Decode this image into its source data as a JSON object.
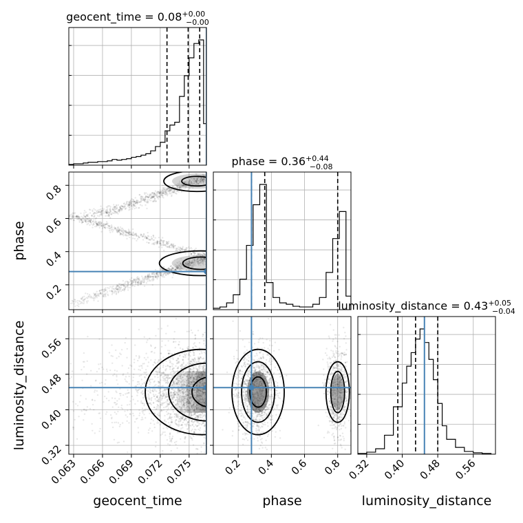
{
  "colors": {
    "truth": "#4682b4",
    "hist": "#000000",
    "grid": "#b0b0b0",
    "points": "#000000"
  },
  "chart_data": {
    "type": "corner",
    "parameters": [
      "geocent_time",
      "phase",
      "luminosity_distance"
    ],
    "truths": {
      "geocent_time": 0.0768,
      "phase": 0.28,
      "luminosity_distance": 0.45
    },
    "ranges": {
      "geocent_time": [
        0.0625,
        0.0768
      ],
      "phase": [
        0.05,
        0.88
      ],
      "luminosity_distance": [
        0.3,
        0.61
      ]
    },
    "ticks": {
      "geocent_time": [
        "0.063",
        "0.066",
        "0.069",
        "0.072",
        "0.075"
      ],
      "phase": [
        "0.2",
        "0.4",
        "0.6",
        "0.8"
      ],
      "luminosity_distance": [
        "0.32",
        "0.40",
        "0.48",
        "0.56"
      ]
    },
    "titles": [
      {
        "param": "geocent_time",
        "label": "geocent_time = 0.08",
        "plus": "+0.00",
        "minus": "−0.00"
      },
      {
        "param": "phase",
        "label": "phase = 0.36",
        "plus": "+0.44",
        "minus": "−0.08"
      },
      {
        "param": "luminosity_distance",
        "label": "luminosity_distance = 0.43",
        "plus": "+0.05",
        "minus": "−0.04"
      }
    ],
    "quantiles": {
      "geocent_time": [
        0.0727,
        0.0749,
        0.0761
      ],
      "phase": [
        0.28,
        0.36,
        0.8
      ],
      "luminosity_distance": [
        0.39,
        0.43,
        0.48
      ]
    },
    "histograms": {
      "geocent_time": {
        "edges": [
          0.0625,
          0.063,
          0.0635,
          0.064,
          0.0645,
          0.065,
          0.0655,
          0.066,
          0.0665,
          0.067,
          0.0675,
          0.068,
          0.0685,
          0.069,
          0.0695,
          0.07,
          0.0705,
          0.071,
          0.0715,
          0.072,
          0.0725,
          0.073,
          0.0735,
          0.074,
          0.0745,
          0.075,
          0.0755,
          0.076,
          0.0765,
          0.0768
        ],
        "counts": [
          1,
          2,
          2,
          3,
          4,
          4,
          5,
          5,
          6,
          8,
          7,
          8,
          9,
          11,
          12,
          14,
          16,
          20,
          26,
          32,
          48,
          56,
          60,
          96,
          125,
          150,
          170,
          175,
          58
        ]
      },
      "phase": {
        "edges": [
          0.05,
          0.09,
          0.13,
          0.17,
          0.21,
          0.25,
          0.29,
          0.33,
          0.37,
          0.41,
          0.45,
          0.49,
          0.53,
          0.57,
          0.61,
          0.65,
          0.69,
          0.73,
          0.77,
          0.81,
          0.85,
          0.88
        ],
        "counts": [
          2,
          4,
          10,
          22,
          45,
          95,
          155,
          185,
          40,
          18,
          10,
          8,
          5,
          4,
          4,
          8,
          18,
          55,
          105,
          145,
          20
        ]
      },
      "luminosity_distance": {
        "edges": [
          0.3,
          0.32,
          0.34,
          0.36,
          0.38,
          0.4,
          0.41,
          0.42,
          0.43,
          0.44,
          0.45,
          0.46,
          0.47,
          0.48,
          0.49,
          0.5,
          0.52,
          0.54,
          0.56,
          0.58,
          0.6
        ],
        "counts": [
          1,
          3,
          8,
          28,
          70,
          105,
          130,
          150,
          170,
          185,
          165,
          140,
          110,
          75,
          42,
          22,
          10,
          4,
          2,
          1
        ]
      }
    },
    "scatter_panels": [
      {
        "x": "geocent_time",
        "y": "phase"
      },
      {
        "x": "geocent_time",
        "y": "luminosity_distance"
      },
      {
        "x": "phase",
        "y": "luminosity_distance"
      }
    ],
    "grid": true
  }
}
